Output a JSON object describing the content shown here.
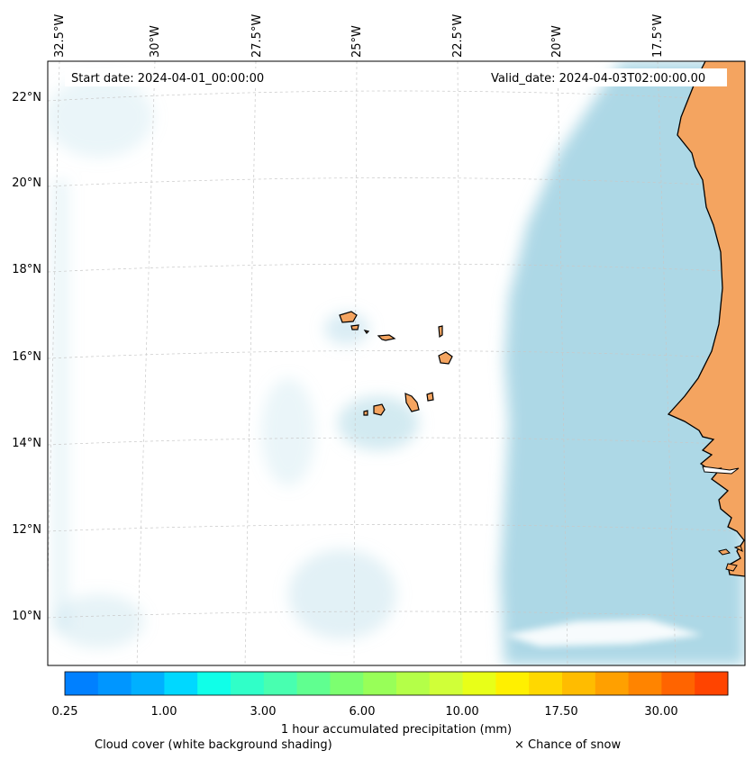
{
  "header": {
    "start_date": "Start date: 2024-04-01_00:00:00",
    "valid_date": "Valid_date: 2024-04-03T02:00:00.00"
  },
  "axes": {
    "longitude_labels": [
      "32.5°W",
      "30°W",
      "27.5°W",
      "25°W",
      "22.5°W",
      "20°W",
      "17.5°W"
    ],
    "latitude_labels": [
      "22°N",
      "20°N",
      "18°N",
      "16°N",
      "14°N",
      "12°N",
      "10°N"
    ]
  },
  "colorbar": {
    "title": "1 hour accumulated precipitation (mm)",
    "tick_labels": [
      "0.25",
      "1.00",
      "3.00",
      "6.00",
      "10.00",
      "17.50",
      "30.00"
    ],
    "colors": [
      "#0080ff",
      "#0096ff",
      "#00b0ff",
      "#00d8ff",
      "#10ffe8",
      "#30ffc8",
      "#48ffb0",
      "#60ff90",
      "#7cff70",
      "#98ff58",
      "#b4ff48",
      "#d0ff38",
      "#e8ff18",
      "#fff000",
      "#ffd800",
      "#ffbc00",
      "#ffa000",
      "#ff8400",
      "#ff6400",
      "#ff4400"
    ]
  },
  "legend": {
    "cloud_cover": "Cloud cover (white background shading)",
    "snow": "× Chance of snow"
  },
  "map_colors": {
    "land": "#f4a460",
    "cloud": "#add8e6",
    "coastline": "#000000",
    "gridline": "#c8c8c8"
  }
}
